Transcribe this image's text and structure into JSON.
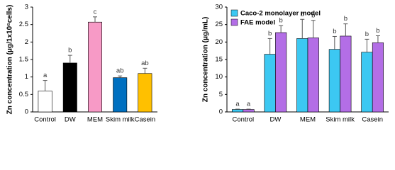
{
  "chart_data": [
    {
      "type": "bar",
      "y_label": "Zn concentration (μg/1x10⁶cells)",
      "categories": [
        "Control",
        "DW",
        "MEM",
        "Skim milk",
        "Casein"
      ],
      "values": [
        0.6,
        1.4,
        2.57,
        0.98,
        1.1
      ],
      "errors": [
        0.3,
        0.22,
        0.15,
        0.05,
        0.15
      ],
      "annotations": [
        "a",
        "b",
        "c",
        "ab",
        "ab"
      ],
      "colors": [
        "#ffffff",
        "#000000",
        "#f79ac6",
        "#0070c0",
        "#ffc000"
      ],
      "ylim": [
        0,
        3
      ],
      "yticks": [
        0,
        0.5,
        1,
        1.5,
        2,
        2.5,
        3
      ]
    },
    {
      "type": "grouped-bar",
      "y_label": "Zn concentration (μg/mL)",
      "categories": [
        "Control",
        "DW",
        "MEM",
        "Skim milk",
        "Casein"
      ],
      "series": [
        {
          "name": "Caco-2 monolayer model",
          "color": "#3cc8f2",
          "values": [
            0.7,
            16.5,
            21,
            17.9,
            17.1
          ],
          "errors": [
            0.1,
            4.5,
            5.5,
            3.7,
            3.7
          ],
          "annotations": [
            "a",
            "b",
            "b",
            "b",
            "b"
          ]
        },
        {
          "name": "FAE model",
          "color": "#b36ee6",
          "values": [
            0.7,
            22.7,
            21.2,
            21.7,
            19.8
          ],
          "errors": [
            0.1,
            2,
            5,
            3.5,
            2
          ],
          "annotations": [
            "a",
            "b",
            "b",
            "b",
            "b"
          ]
        }
      ],
      "legend": "upper left",
      "ylim": [
        0,
        30
      ],
      "yticks": [
        0,
        5,
        10,
        15,
        20,
        25,
        30
      ]
    }
  ]
}
